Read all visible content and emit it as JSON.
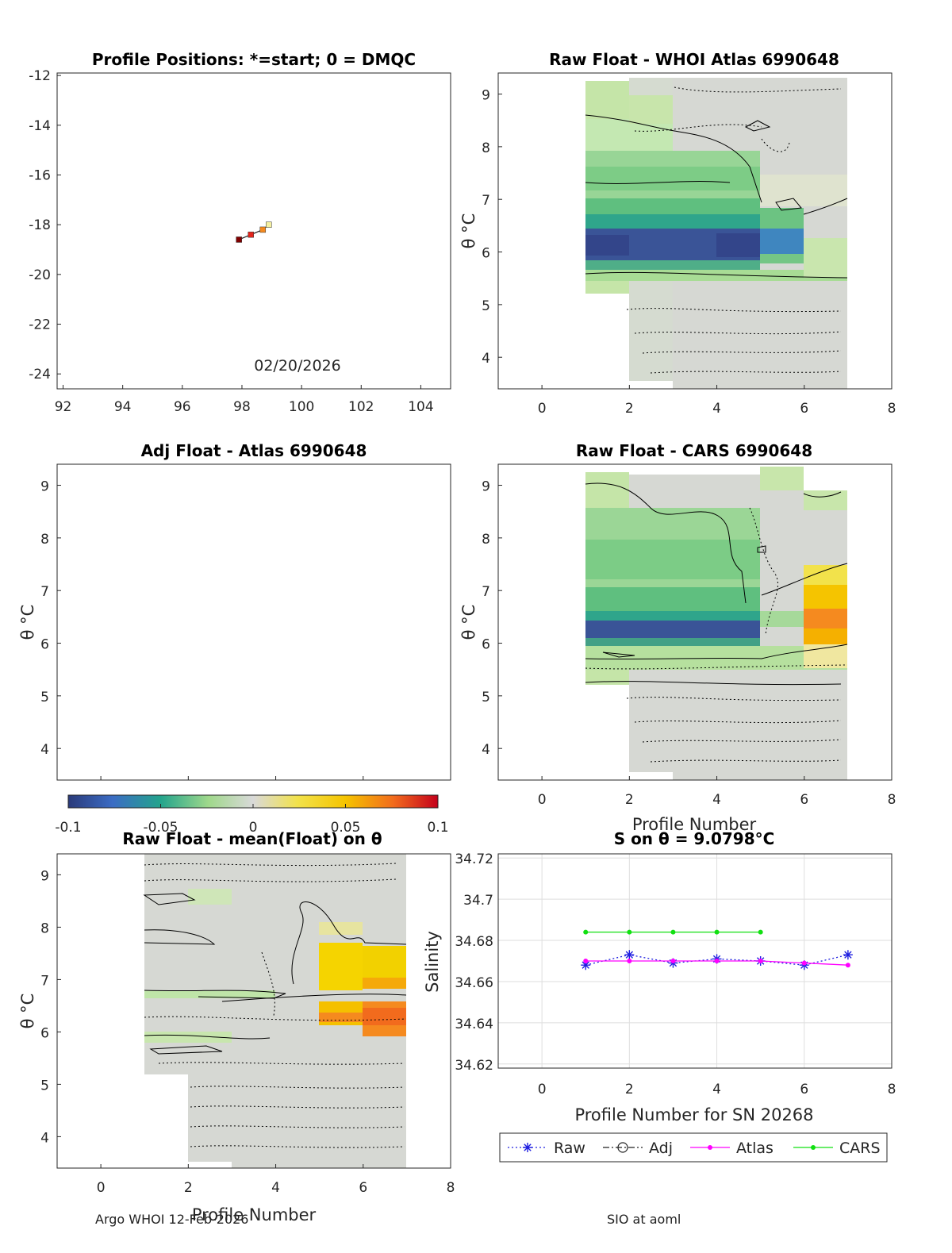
{
  "figure": {
    "footer_left": "Argo WHOI 12-Feb-2026",
    "footer_right": "SIO at aoml"
  },
  "map": {
    "title": "Profile Positions: *=start; 0 = DMQC",
    "date": "02/20/2026",
    "xticks": [
      "92",
      "94",
      "96",
      "98",
      "100",
      "102",
      "104"
    ],
    "yticks": [
      "-12",
      "-14",
      "-16",
      "-18",
      "-20",
      "-22",
      "-24"
    ],
    "track": [
      {
        "lon": 97.9,
        "lat": -18.6,
        "color": "#7f0000"
      },
      {
        "lon": 98.3,
        "lat": -18.4,
        "color": "#e3251c"
      },
      {
        "lon": 98.7,
        "lat": -18.2,
        "color": "#f58a1f"
      },
      {
        "lon": 98.9,
        "lat": -18.0,
        "color": "#f5f0a0"
      }
    ]
  },
  "panels": {
    "whoi": {
      "title": "Raw Float - WHOI Atlas  6990648"
    },
    "adj": {
      "title": "Adj Float - Atlas  6990648"
    },
    "cars": {
      "title": "Raw Float - CARS  6990648"
    },
    "mean": {
      "title": "Raw Float - mean(Float) on θ"
    },
    "ylabel": "θ °C",
    "xlabel": "Profile Number",
    "xticks": [
      "0",
      "2",
      "4",
      "6",
      "8"
    ],
    "yticks": [
      "9",
      "8",
      "7",
      "6",
      "5",
      "4"
    ]
  },
  "colorbar": {
    "ticks": [
      "-0.1",
      "-0.05",
      "0",
      "0.05",
      "0.1"
    ],
    "range": [
      -0.1,
      0.1
    ]
  },
  "chart_data": {
    "type": "line",
    "title": "S on θ = 9.0798°C",
    "xlabel": "Profile Number for SN 20268",
    "ylabel": "Salinity",
    "xlim": [
      -1,
      8
    ],
    "ylim": [
      34.618,
      34.722
    ],
    "xticks": [
      "0",
      "2",
      "4",
      "6",
      "8"
    ],
    "yticks": [
      "34.72",
      "34.7",
      "34.68",
      "34.66",
      "34.64",
      "34.62"
    ],
    "series": [
      {
        "name": "Raw",
        "color": "#1f1fe0",
        "marker": "star",
        "dash": "2,3",
        "x": [
          1,
          2,
          3,
          4,
          5,
          6,
          7
        ],
        "values": [
          34.668,
          34.673,
          34.669,
          34.671,
          34.67,
          34.668,
          34.673
        ]
      },
      {
        "name": "Adj",
        "color": "#222222",
        "marker": "circle",
        "dash": "8,3,2,3",
        "x": [],
        "values": []
      },
      {
        "name": "Atlas",
        "color": "#ff00ff",
        "marker": "dot",
        "dash": "",
        "x": [
          1,
          2,
          3,
          4,
          5,
          6,
          7
        ],
        "values": [
          34.67,
          34.67,
          34.67,
          34.67,
          34.67,
          34.669,
          34.668
        ]
      },
      {
        "name": "CARS",
        "color": "#11e011",
        "marker": "dot",
        "dash": "",
        "x": [
          1,
          2,
          3,
          4,
          5
        ],
        "values": [
          34.684,
          34.684,
          34.684,
          34.684,
          34.684
        ]
      }
    ]
  }
}
